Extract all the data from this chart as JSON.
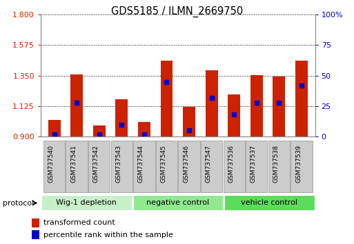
{
  "title": "GDS5185 / ILMN_2669750",
  "samples": [
    "GSM737540",
    "GSM737541",
    "GSM737542",
    "GSM737543",
    "GSM737544",
    "GSM737545",
    "GSM737546",
    "GSM737547",
    "GSM737536",
    "GSM737537",
    "GSM737538",
    "GSM737539"
  ],
  "transformed_counts": [
    1.025,
    1.36,
    0.985,
    1.175,
    1.01,
    1.46,
    1.12,
    1.39,
    1.21,
    1.355,
    1.345,
    1.46
  ],
  "percentile_ranks": [
    2,
    28,
    2,
    10,
    2,
    45,
    5,
    32,
    18,
    28,
    28,
    42
  ],
  "y_min": 0.9,
  "y_max": 1.8,
  "y_ticks": [
    0.9,
    1.125,
    1.35,
    1.575,
    1.8
  ],
  "y2_ticks": [
    0,
    25,
    50,
    75,
    100
  ],
  "groups": [
    {
      "label": "Wig-1 depletion",
      "start": 0,
      "end": 4,
      "color": "#c8f0c8"
    },
    {
      "label": "negative control",
      "start": 4,
      "end": 8,
      "color": "#90e890"
    },
    {
      "label": "vehicle control",
      "start": 8,
      "end": 12,
      "color": "#5cdc5c"
    }
  ],
  "bar_color": "#cc2200",
  "dot_color": "#0000cc",
  "bar_width": 0.55,
  "grid_color": "#000000",
  "label_color_left": "#cc2200",
  "label_color_right": "#0000bb",
  "legend_red_label": "transformed count",
  "legend_blue_label": "percentile rank within the sample",
  "protocol_label": "protocol",
  "tick_box_color": "#cccccc",
  "tick_box_edge_color": "#aaaaaa"
}
